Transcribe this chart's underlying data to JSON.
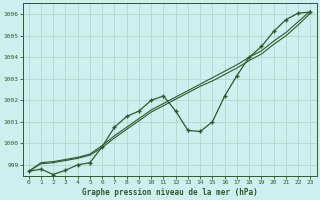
{
  "title": "Graphe pression niveau de la mer (hPa)",
  "background_color": "#cdf0ee",
  "grid_color": "#b0d8d0",
  "line_color": "#2d5a2d",
  "xlim": [
    -0.5,
    23.5
  ],
  "ylim": [
    998.5,
    1006.5
  ],
  "yticks": [
    999,
    1000,
    1001,
    1002,
    1003,
    1004,
    1005,
    1006
  ],
  "xticks": [
    0,
    1,
    2,
    3,
    4,
    5,
    6,
    7,
    8,
    9,
    10,
    11,
    12,
    13,
    14,
    15,
    16,
    17,
    18,
    19,
    20,
    21,
    22,
    23
  ],
  "series1_x": [
    0,
    1,
    2,
    3,
    4,
    5,
    6,
    7,
    8,
    9,
    10,
    11,
    12,
    13,
    14,
    15,
    16,
    17,
    18,
    19,
    20,
    21,
    22,
    23
  ],
  "series1_y": [
    998.7,
    998.8,
    998.55,
    998.75,
    999.0,
    999.1,
    999.85,
    1000.75,
    1001.25,
    1001.5,
    1002.0,
    1002.2,
    1001.5,
    1000.6,
    1000.55,
    1001.0,
    1002.2,
    1003.15,
    1004.0,
    1004.5,
    1005.2,
    1005.75,
    1006.05,
    1006.1
  ],
  "series2_x": [
    0,
    1,
    2,
    3,
    4,
    5,
    6,
    7,
    8,
    9,
    10,
    11,
    12,
    13,
    14,
    15,
    16,
    17,
    18,
    19,
    20,
    21,
    22,
    23
  ],
  "series2_y": [
    998.7,
    999.05,
    999.1,
    999.2,
    999.3,
    999.45,
    999.8,
    1000.25,
    1000.65,
    1001.05,
    1001.45,
    1001.75,
    1002.05,
    1002.35,
    1002.65,
    1002.9,
    1003.2,
    1003.5,
    1003.85,
    1004.15,
    1004.6,
    1005.0,
    1005.5,
    1006.05
  ],
  "series3_x": [
    0,
    1,
    2,
    3,
    4,
    5,
    6,
    7,
    8,
    9,
    10,
    11,
    12,
    13,
    14,
    15,
    16,
    17,
    18,
    19,
    20,
    21,
    22,
    23
  ],
  "series3_y": [
    998.7,
    999.1,
    999.15,
    999.25,
    999.35,
    999.5,
    999.9,
    1000.35,
    1000.75,
    1001.15,
    1001.55,
    1001.85,
    1002.15,
    1002.45,
    1002.75,
    1003.05,
    1003.35,
    1003.65,
    1004.0,
    1004.3,
    1004.75,
    1005.15,
    1005.65,
    1006.15
  ]
}
